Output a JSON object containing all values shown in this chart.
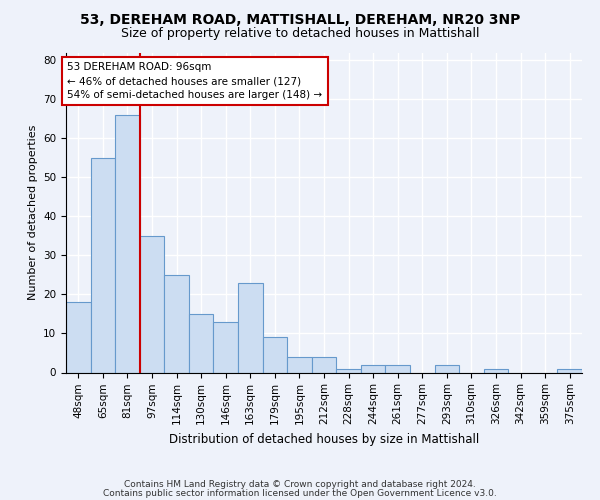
{
  "title1": "53, DEREHAM ROAD, MATTISHALL, DEREHAM, NR20 3NP",
  "title2": "Size of property relative to detached houses in Mattishall",
  "xlabel": "Distribution of detached houses by size in Mattishall",
  "ylabel": "Number of detached properties",
  "categories": [
    "48sqm",
    "65sqm",
    "81sqm",
    "97sqm",
    "114sqm",
    "130sqm",
    "146sqm",
    "163sqm",
    "179sqm",
    "195sqm",
    "212sqm",
    "228sqm",
    "244sqm",
    "261sqm",
    "277sqm",
    "293sqm",
    "310sqm",
    "326sqm",
    "342sqm",
    "359sqm",
    "375sqm"
  ],
  "values": [
    18,
    55,
    66,
    35,
    25,
    15,
    13,
    23,
    9,
    4,
    4,
    1,
    2,
    2,
    0,
    2,
    0,
    1,
    0,
    0,
    1
  ],
  "bar_color": "#ccddf2",
  "bar_edge_color": "#6699cc",
  "vline_x": 2.5,
  "vline_color": "#cc0000",
  "annotation_line1": "53 DEREHAM ROAD: 96sqm",
  "annotation_line2": "← 46% of detached houses are smaller (127)",
  "annotation_line3": "54% of semi-detached houses are larger (148) →",
  "annotation_box_color": "#cc0000",
  "ylim": [
    0,
    82
  ],
  "yticks": [
    0,
    10,
    20,
    30,
    40,
    50,
    60,
    70,
    80
  ],
  "footer1": "Contains HM Land Registry data © Crown copyright and database right 2024.",
  "footer2": "Contains public sector information licensed under the Open Government Licence v3.0.",
  "background_color": "#eef2fa",
  "plot_background_color": "#eef2fa",
  "grid_color": "#ffffff",
  "title1_fontsize": 10,
  "title2_fontsize": 9,
  "xlabel_fontsize": 8.5,
  "ylabel_fontsize": 8,
  "annot_fontsize": 7.5,
  "tick_fontsize": 7.5,
  "footer_fontsize": 6.5
}
